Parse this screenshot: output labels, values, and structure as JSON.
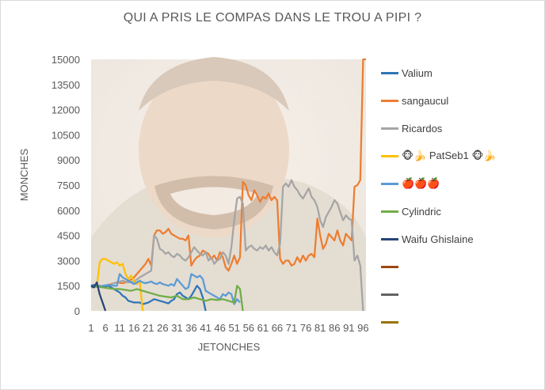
{
  "chart_data": {
    "type": "line",
    "title": "QUI A PRIS LE COMPAS DANS LE TROU A PIPI ?",
    "xlabel": "JETONCHES",
    "ylabel": "MONCHES",
    "ylim": [
      0,
      15000
    ],
    "yticks": [
      0,
      1500,
      3000,
      4500,
      6000,
      7500,
      9000,
      10500,
      12000,
      13500,
      15000
    ],
    "xlim": [
      1,
      97
    ],
    "xticks": [
      1,
      6,
      11,
      16,
      21,
      26,
      31,
      36,
      41,
      46,
      51,
      56,
      61,
      66,
      71,
      76,
      81,
      86,
      91,
      96
    ],
    "legend_position": "right",
    "series": [
      {
        "name": "Valium",
        "color": "#2e75b6",
        "x": [
          1,
          2,
          3,
          4,
          5,
          6,
          7,
          8,
          9,
          10,
          11,
          12,
          13,
          14,
          15,
          16,
          17,
          18,
          19,
          20,
          21,
          22,
          23,
          24,
          25,
          26,
          27,
          28,
          29,
          30,
          31,
          32,
          33,
          34,
          35,
          36,
          37,
          38,
          39,
          40,
          41
        ],
        "y": [
          1500,
          1550,
          1450,
          1500,
          1400,
          1450,
          1500,
          1400,
          1300,
          1200,
          1100,
          900,
          800,
          600,
          550,
          500,
          500,
          500,
          400,
          450,
          500,
          600,
          700,
          650,
          600,
          550,
          500,
          450,
          600,
          700,
          1000,
          1100,
          900,
          800,
          700,
          900,
          1200,
          1500,
          1300,
          800,
          0
        ]
      },
      {
        "name": "sangaucul",
        "color": "#ed7d31",
        "x": [
          6,
          8,
          10,
          12,
          14,
          16,
          18,
          19,
          20,
          21,
          22,
          23,
          24,
          25,
          26,
          27,
          28,
          29,
          30,
          31,
          32,
          33,
          34,
          35,
          36,
          37,
          38,
          39,
          40,
          41,
          42,
          43,
          44,
          45,
          46,
          47,
          48,
          49,
          50,
          51,
          52,
          53,
          54,
          55,
          56,
          57,
          58,
          59,
          60,
          61,
          62,
          63,
          64,
          65,
          66,
          67,
          68,
          69,
          70,
          71,
          72,
          73,
          74,
          75,
          76,
          77,
          78,
          79,
          80,
          81,
          82,
          83,
          84,
          85,
          86,
          87,
          88,
          89,
          90,
          91,
          92,
          93,
          94,
          95,
          96,
          97
        ],
        "y": [
          1500,
          1600,
          1700,
          1650,
          1750,
          2000,
          2400,
          2600,
          2800,
          3100,
          2700,
          4500,
          4800,
          4800,
          4600,
          4700,
          4900,
          4600,
          4500,
          4400,
          4300,
          4300,
          4200,
          4500,
          2700,
          3000,
          3200,
          3300,
          3600,
          3500,
          3400,
          3100,
          3300,
          3000,
          3500,
          3200,
          2600,
          2400,
          2800,
          3300,
          2800,
          3200,
          7700,
          7500,
          6900,
          6600,
          7200,
          6900,
          6500,
          6800,
          6700,
          7000,
          6600,
          6800,
          6600,
          3100,
          2800,
          3000,
          3000,
          2700,
          2800,
          3200,
          2900,
          3300,
          3000,
          3300,
          3400,
          3200,
          5500,
          4500,
          3700,
          4000,
          4600,
          4400,
          4200,
          4800,
          4200,
          3900,
          4600,
          4400,
          4200,
          7400,
          7500,
          7800,
          15000,
          15000
        ]
      },
      {
        "name": "Ricardos",
        "color": "#a5a5a5",
        "x": [
          8,
          10,
          12,
          14,
          16,
          18,
          20,
          22,
          23,
          24,
          25,
          26,
          27,
          28,
          29,
          30,
          31,
          32,
          33,
          34,
          35,
          36,
          37,
          38,
          39,
          40,
          41,
          42,
          43,
          44,
          45,
          46,
          47,
          48,
          49,
          50,
          51,
          52,
          53,
          54,
          55,
          56,
          57,
          58,
          59,
          60,
          61,
          62,
          63,
          64,
          65,
          66,
          67,
          68,
          69,
          70,
          71,
          72,
          73,
          74,
          75,
          76,
          77,
          78,
          79,
          80,
          81,
          82,
          83,
          84,
          85,
          86,
          87,
          88,
          89,
          90,
          91,
          92,
          93,
          94,
          95,
          96
        ],
        "y": [
          1600,
          1700,
          1800,
          1700,
          1750,
          2000,
          2200,
          2400,
          4500,
          4300,
          3700,
          3600,
          3400,
          3500,
          3300,
          3200,
          3400,
          3300,
          3100,
          3000,
          3200,
          3500,
          3800,
          3600,
          3400,
          3300,
          3500,
          3000,
          3200,
          2800,
          3000,
          3100,
          3500,
          3300,
          2800,
          3800,
          5400,
          6700,
          6800,
          6400,
          3600,
          3800,
          3900,
          3700,
          3600,
          3800,
          3700,
          3900,
          3600,
          3800,
          3500,
          3300,
          4000,
          7400,
          7600,
          7400,
          7800,
          7400,
          7200,
          6900,
          6700,
          7000,
          7300,
          6800,
          6600,
          6200,
          5400,
          5000,
          5600,
          5900,
          6200,
          6600,
          6400,
          5900,
          5400,
          5700,
          5500,
          5400,
          3000,
          3300,
          2700,
          0
        ]
      },
      {
        "name": "🐵🍌 PatSeb1 🐵🍌",
        "color": "#ffc000",
        "x": [
          3,
          4,
          5,
          6,
          7,
          8,
          9,
          10,
          11,
          12,
          13,
          14,
          15,
          16,
          17,
          18,
          19
        ],
        "y": [
          1400,
          2900,
          3100,
          3100,
          3000,
          2900,
          2800,
          2900,
          2700,
          2800,
          2200,
          1900,
          2100,
          1800,
          1600,
          1800,
          0
        ]
      },
      {
        "name": "🍎🍎🍎",
        "color": "#5b9bd5",
        "x": [
          1,
          3,
          5,
          7,
          9,
          10,
          11,
          12,
          13,
          14,
          15,
          16,
          17,
          18,
          19,
          20,
          21,
          22,
          23,
          24,
          25,
          26,
          27,
          28,
          29,
          30,
          31,
          32,
          33,
          34,
          35,
          36,
          37,
          38,
          39,
          40,
          41,
          42,
          43,
          44,
          45,
          46,
          47,
          48,
          49,
          50,
          51,
          52,
          53
        ],
        "y": [
          1400,
          1450,
          1500,
          1550,
          1500,
          1500,
          2200,
          2000,
          1900,
          1800,
          1700,
          1600,
          1700,
          1800,
          1700,
          1650,
          1700,
          1750,
          1650,
          1600,
          1700,
          1600,
          1550,
          1500,
          1600,
          1500,
          1900,
          1700,
          1500,
          1300,
          1400,
          2200,
          2100,
          2000,
          2100,
          1900,
          1200,
          1100,
          1000,
          900,
          800,
          700,
          1000,
          900,
          1100,
          1000,
          400,
          700,
          500
        ]
      },
      {
        "name": "Cylindric",
        "color": "#70ad47",
        "x": [
          1,
          3,
          5,
          7,
          9,
          11,
          13,
          15,
          17,
          19,
          21,
          23,
          25,
          27,
          29,
          31,
          33,
          35,
          37,
          39,
          41,
          43,
          45,
          47,
          49,
          51,
          52,
          53,
          54
        ],
        "y": [
          1400,
          1450,
          1400,
          1350,
          1300,
          1300,
          1250,
          1200,
          1300,
          1200,
          1100,
          1000,
          900,
          850,
          800,
          900,
          700,
          700,
          800,
          700,
          600,
          700,
          650,
          700,
          600,
          500,
          1500,
          1300,
          0
        ]
      },
      {
        "name": "Waifu Ghislaine",
        "color": "#264478",
        "x": [
          1,
          2,
          3,
          4,
          5,
          6
        ],
        "y": [
          1500,
          1400,
          1700,
          1000,
          500,
          0
        ]
      },
      {
        "name": "",
        "color": "#9e480e",
        "x": [],
        "y": []
      },
      {
        "name": "",
        "color": "#636363",
        "x": [],
        "y": []
      },
      {
        "name": "",
        "color": "#997300",
        "x": [],
        "y": []
      }
    ]
  }
}
